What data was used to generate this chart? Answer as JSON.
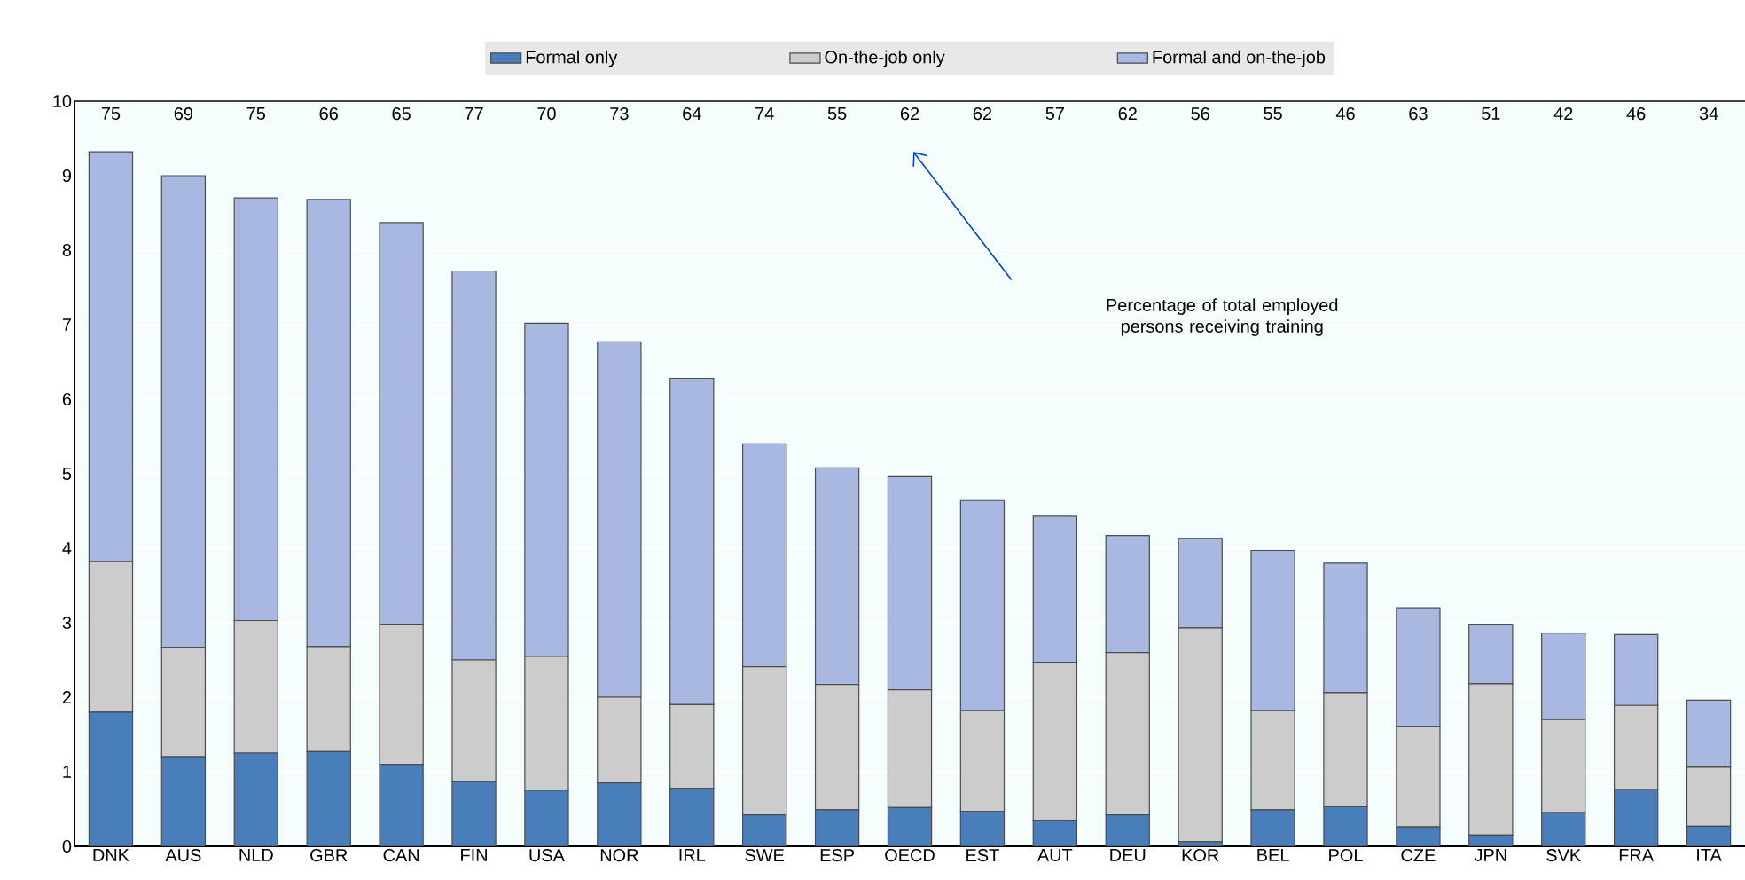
{
  "chart_data": {
    "type": "bar",
    "stacked": true,
    "legend": "top",
    "grid": "y",
    "categories": [
      "DNK",
      "AUS",
      "NLD",
      "GBR",
      "CAN",
      "FIN",
      "USA",
      "NOR",
      "IRL",
      "SWE",
      "ESP",
      "OECD",
      "EST",
      "AUT",
      "DEU",
      "KOR",
      "BEL",
      "POL",
      "CZE",
      "JPN",
      "SVK",
      "FRA",
      "ITA"
    ],
    "ylim": [
      0,
      10
    ],
    "yticks": [
      0,
      1,
      2,
      3,
      4,
      5,
      6,
      7,
      8,
      9,
      10
    ],
    "series": [
      {
        "name": "Formal only",
        "color": "#4a7ebb",
        "values": [
          1.8,
          1.2,
          1.25,
          1.27,
          1.1,
          0.87,
          0.75,
          0.85,
          0.78,
          0.42,
          0.49,
          0.52,
          0.47,
          0.35,
          0.42,
          0.06,
          0.49,
          0.53,
          0.26,
          0.15,
          0.45,
          0.76,
          0.27
        ]
      },
      {
        "name": "On-the-job only",
        "color": "#cccccc",
        "values": [
          2.02,
          1.47,
          1.78,
          1.41,
          1.88,
          1.63,
          1.8,
          1.15,
          1.12,
          1.99,
          1.68,
          1.58,
          1.35,
          2.12,
          2.18,
          2.87,
          1.33,
          1.53,
          1.35,
          2.03,
          1.25,
          1.13,
          0.79
        ]
      },
      {
        "name": "Formal and on-the-job",
        "color": "#a9b8e3",
        "values": [
          5.5,
          6.33,
          5.67,
          6.0,
          5.39,
          5.22,
          4.47,
          4.77,
          4.38,
          2.99,
          2.91,
          2.86,
          2.82,
          1.96,
          1.57,
          1.2,
          2.15,
          1.74,
          1.59,
          0.8,
          1.16,
          0.95,
          0.9
        ]
      }
    ],
    "annotations": [
      "75",
      "69",
      "75",
      "66",
      "65",
      "77",
      "70",
      "73",
      "64",
      "74",
      "55",
      "62",
      "62",
      "57",
      "62",
      "56",
      "55",
      "46",
      "63",
      "51",
      "42",
      "46",
      "34",
      "Percentage of total employed persons receiving training"
    ]
  }
}
